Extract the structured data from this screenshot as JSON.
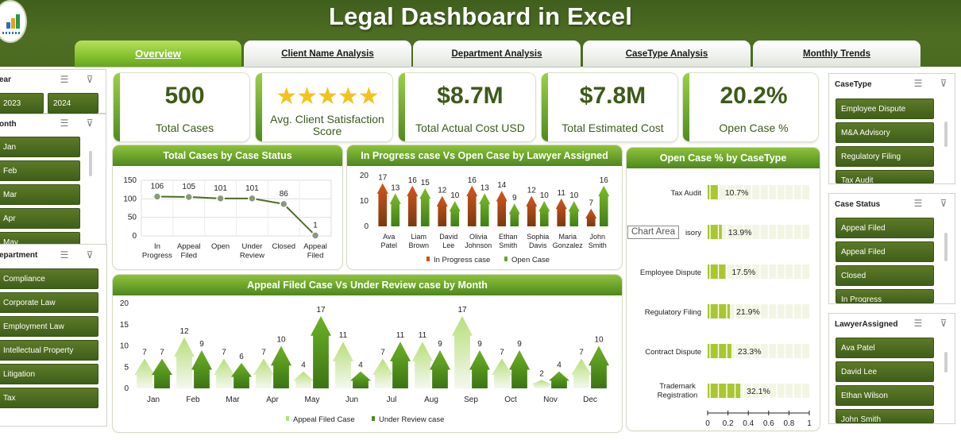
{
  "app": {
    "title": "Legal Dashboard in Excel"
  },
  "tabs": [
    "Overview",
    "Client Name Analysis",
    "Department Analysis",
    "CaseType Analysis",
    "Monthly Trends"
  ],
  "slicers": {
    "year": {
      "title": "ear",
      "items": [
        "2023",
        "2024"
      ]
    },
    "month": {
      "title": "onth",
      "items": [
        "Jan",
        "Feb",
        "Mar",
        "Apr",
        "May"
      ]
    },
    "department": {
      "title": "epartment",
      "items": [
        "Compliance",
        "Corporate Law",
        "Employment Law",
        "Intellectual Property",
        "Litigation",
        "Tax"
      ]
    },
    "case_type": {
      "title": "CaseType",
      "items": [
        "Employee Dispute",
        "M&A Advisory",
        "Regulatory Filing",
        "Tax Audit"
      ]
    },
    "case_status": {
      "title": "Case Status",
      "items": [
        "Appeal Filed",
        "Appeal Filed",
        "Closed",
        "In Progress"
      ]
    },
    "lawyer": {
      "title": "LawyerAssigned",
      "items": [
        "Ava Patel",
        "David Lee",
        "Ethan Wilson",
        "John Smith"
      ]
    }
  },
  "kpis": [
    {
      "value": "500",
      "label": "Total Cases"
    },
    {
      "value": "★★★★★",
      "label": "Avg. Client Satisfaction Score"
    },
    {
      "value": "$8.7M",
      "label": "Total Actual Cost USD"
    },
    {
      "value": "$7.8M",
      "label": "Total Estimated Cost"
    },
    {
      "value": "20.2%",
      "label": "Open Case %"
    }
  ],
  "tooltip": "Chart Area",
  "colors": {
    "header": "#4a6a20",
    "accent": "#86c332",
    "dark_green": "#3d5a1a",
    "orange": "#c9541a",
    "star": "#f3c21c"
  },
  "chart_data": [
    {
      "type": "line",
      "title": "Total Cases by Case Status",
      "categories": [
        "In Progress",
        "Appeal Filed",
        "Open",
        "Under Review",
        "Closed",
        "Appeal Filed"
      ],
      "values": [
        106,
        105,
        101,
        101,
        86,
        1
      ],
      "yticks": [
        0,
        50,
        100,
        150
      ],
      "ylim": [
        0,
        150
      ],
      "grid": true
    },
    {
      "type": "bar",
      "title": "In Progress case Vs Open Case by Lawyer Assigned",
      "categories": [
        "Ava Patel",
        "Liam Brown",
        "David Lee",
        "Olivia Johnson",
        "Ethan Smith",
        "Sophia Davis",
        "Maria Gonzalez",
        "John Smith"
      ],
      "series": [
        {
          "name": "In Progress case",
          "values": [
            17,
            16,
            12,
            16,
            14,
            12,
            11,
            7
          ]
        },
        {
          "name": "Open Case",
          "values": [
            13,
            15,
            10,
            13,
            9,
            10,
            10,
            16
          ]
        }
      ],
      "yticks": [
        0,
        10,
        20
      ],
      "ylim": [
        0,
        20
      ],
      "legend": "bottom"
    },
    {
      "type": "bar",
      "title": "Appeal Filed Case Vs Under Review case by Month",
      "categories": [
        "Jan",
        "Feb",
        "Mar",
        "Apr",
        "May",
        "Jun",
        "Jul",
        "Aug",
        "Sep",
        "Oct",
        "Nov",
        "Dec"
      ],
      "series": [
        {
          "name": "Appeal Filed Case",
          "values": [
            7,
            12,
            7,
            7,
            4,
            11,
            7,
            11,
            17,
            7,
            2,
            7
          ]
        },
        {
          "name": "Under Review case",
          "values": [
            7,
            9,
            6,
            10,
            17,
            4,
            11,
            9,
            9,
            9,
            4,
            10
          ]
        }
      ],
      "yticks": [
        0,
        5,
        10,
        15,
        20
      ],
      "ylim": [
        0,
        20
      ],
      "legend": "bottom"
    },
    {
      "type": "bar",
      "title": "Open Case % by CaseType",
      "categories": [
        "Tax Audit",
        "M&A Advisory",
        "Employee Dispute",
        "Regulatory Filing",
        "Contract Dispute",
        "Trademark Registration"
      ],
      "category_labels": [
        "Tax Audit",
        "isory",
        "Employee Dispute",
        "Regulatory Filing",
        "Contract Dispute",
        "Trademark Registration"
      ],
      "values": [
        0.107,
        0.139,
        0.175,
        0.219,
        0.233,
        0.321
      ],
      "value_labels": [
        "10.7%",
        "13.9%",
        "17.5%",
        "21.9%",
        "23.3%",
        "32.1%"
      ],
      "xticks": [
        "0",
        "0.2",
        "0.4",
        "0.6",
        "0.8",
        "1"
      ],
      "xlim": [
        0,
        1
      ],
      "orientation": "horizontal"
    }
  ]
}
